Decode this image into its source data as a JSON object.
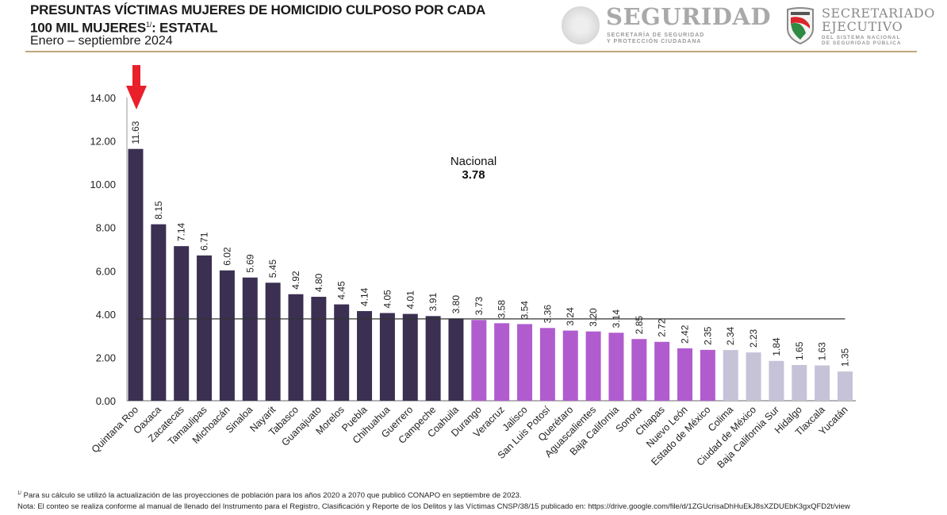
{
  "header": {
    "title_line1": "PRESUNTAS VÍCTIMAS MUJERES DE HOMICIDIO CULPOSO POR CADA",
    "title_line2": "100 MIL MUJERES",
    "title_sup": "1/",
    "title_line2_suffix": ": ESTATAL",
    "subtitle": "Enero – septiembre 2024"
  },
  "logos": {
    "seguridad_name": "SEGURIDAD",
    "seguridad_sub1": "SECRETARÍA DE SEGURIDAD",
    "seguridad_sub2": "Y PROTECCIÓN CIUDADANA",
    "secretariado_line1": "SECRETARIADO",
    "secretariado_line2": "EJECUTIVO",
    "secretariado_sub1": "DEL SISTEMA NACIONAL",
    "secretariado_sub2": "DE SEGURIDAD PÚBLICA"
  },
  "colors": {
    "above_national": "#3b2f52",
    "middle": "#b05ccf",
    "lowest": "#c6c2d8",
    "arrow": "#e8202a",
    "national_line": "#333333"
  },
  "chart_data": {
    "type": "bar",
    "title": "PRESUNTAS VÍCTIMAS MUJERES DE HOMICIDIO CULPOSO POR CADA 100 MIL MUJERES: ESTATAL",
    "subtitle": "Enero – septiembre 2024",
    "xlabel": "",
    "ylabel": "",
    "ylim": [
      0,
      14
    ],
    "yticks": [
      0,
      2,
      4,
      6,
      8,
      10,
      12,
      14
    ],
    "ytick_labels": [
      "0.00",
      "2.00",
      "4.00",
      "6.00",
      "8.00",
      "10.00",
      "12.00",
      "14.00"
    ],
    "grid": false,
    "categories": [
      "Quintana Roo",
      "Oaxaca",
      "Zacatecas",
      "Tamaulipas",
      "Michoacán",
      "Sinaloa",
      "Nayarit",
      "Tabasco",
      "Guanajuato",
      "Morelos",
      "Puebla",
      "Chihuahua",
      "Guerrero",
      "Campeche",
      "Coahuila",
      "Durango",
      "Veracruz",
      "Jalisco",
      "San Luis Potosí",
      "Querétaro",
      "Aguascalientes",
      "Baja California",
      "Sonora",
      "Chiapas",
      "Nuevo León",
      "Estado de México",
      "Colima",
      "Ciudad de México",
      "Baja California Sur",
      "Hidalgo",
      "Tlaxcala",
      "Yucatán"
    ],
    "values": [
      11.63,
      8.15,
      7.14,
      6.71,
      6.02,
      5.69,
      5.45,
      4.92,
      4.8,
      4.45,
      4.14,
      4.05,
      4.01,
      3.91,
      3.8,
      3.73,
      3.58,
      3.54,
      3.36,
      3.24,
      3.2,
      3.14,
      2.85,
      2.72,
      2.42,
      2.35,
      2.34,
      2.23,
      1.84,
      1.65,
      1.63,
      1.35
    ],
    "value_labels": [
      "11.63",
      "8.15",
      "7.14",
      "6.71",
      "6.02",
      "5.69",
      "5.45",
      "4.92",
      "4.80",
      "4.45",
      "4.14",
      "4.05",
      "4.01",
      "3.91",
      "3.80",
      "3.73",
      "3.58",
      "3.54",
      "3.36",
      "3.24",
      "3.20",
      "3.14",
      "2.85",
      "2.72",
      "2.42",
      "2.35",
      "2.34",
      "2.23",
      "1.84",
      "1.65",
      "1.63",
      "1.35"
    ],
    "color_groups": [
      "above_national",
      "above_national",
      "above_national",
      "above_national",
      "above_national",
      "above_national",
      "above_national",
      "above_national",
      "above_national",
      "above_national",
      "above_national",
      "above_national",
      "above_national",
      "above_national",
      "above_national",
      "middle",
      "middle",
      "middle",
      "middle",
      "middle",
      "middle",
      "middle",
      "middle",
      "middle",
      "middle",
      "middle",
      "lowest",
      "lowest",
      "lowest",
      "lowest",
      "lowest",
      "lowest"
    ],
    "reference_line": {
      "label": "Nacional",
      "value": 3.78,
      "value_label": "3.78"
    },
    "annotations": [
      {
        "type": "arrow",
        "target": "Quintana Roo",
        "direction": "down"
      }
    ]
  },
  "footnotes": {
    "note1_sup": "1/",
    "note1": " Para su cálculo se utilizó la actualización de las proyecciones de población para los años 2020 a 2070 que publicó CONAPO en septiembre de 2023.",
    "note2": "Nota: El conteo se realiza conforme al manual de llenado del Instrumento para el Registro, Clasificación y Reporte de los Delitos y las Víctimas CNSP/38/15 publicado en: https://drive.google.com/file/d/1ZGUcrisaDhHuEkJ8sXZDUEbK3gxQFD2t/view"
  }
}
